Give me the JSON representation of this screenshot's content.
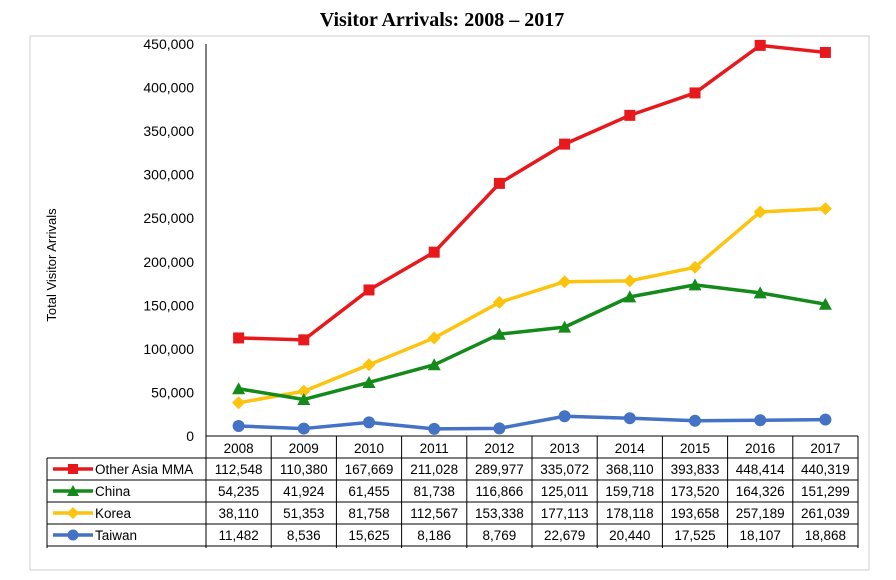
{
  "chart_data": {
    "type": "line",
    "title": "Visitor Arrivals: 2008 – 2017",
    "xlabel": "",
    "ylabel": "Total Visitor Arrivals",
    "ylim": [
      0,
      450000
    ],
    "y_ticks": [
      "0",
      "50,000",
      "100,000",
      "150,000",
      "200,000",
      "250,000",
      "300,000",
      "350,000",
      "400,000",
      "450,000"
    ],
    "categories": [
      "2008",
      "2009",
      "2010",
      "2011",
      "2012",
      "2013",
      "2014",
      "2015",
      "2016",
      "2017"
    ],
    "series": [
      {
        "name": "Other Asia MMA",
        "color": "#e8191c",
        "marker": "square",
        "values": [
          112548,
          110380,
          167669,
          211028,
          289977,
          335072,
          368110,
          393833,
          448414,
          440319
        ],
        "labels": [
          "112,548",
          "110,380",
          "167,669",
          "211,028",
          "289,977",
          "335,072",
          "368,110",
          "393,833",
          "448,414",
          "440,319"
        ]
      },
      {
        "name": "China",
        "color": "#148a1a",
        "marker": "triangle",
        "values": [
          54235,
          41924,
          61455,
          81738,
          116866,
          125011,
          159718,
          173520,
          164326,
          151299
        ],
        "labels": [
          "54,235",
          "41,924",
          "61,455",
          "81,738",
          "116,866",
          "125,011",
          "159,718",
          "173,520",
          "164,326",
          "151,299"
        ]
      },
      {
        "name": "Korea",
        "color": "#fcc30f",
        "marker": "diamond",
        "values": [
          38110,
          51353,
          81758,
          112567,
          153338,
          177113,
          178118,
          193658,
          257189,
          261039
        ],
        "labels": [
          "38,110",
          "51,353",
          "81,758",
          "112,567",
          "153,338",
          "177,113",
          "178,118",
          "193,658",
          "257,189",
          "261,039"
        ]
      },
      {
        "name": "Taiwan",
        "color": "#4472c4",
        "marker": "circle",
        "values": [
          11482,
          8536,
          15625,
          8186,
          8769,
          22679,
          20440,
          17525,
          18107,
          18868
        ],
        "labels": [
          "11,482",
          "8,536",
          "15,625",
          "8,186",
          "8,769",
          "22,679",
          "20,440",
          "17,525",
          "18,107",
          "18,868"
        ]
      }
    ],
    "grid": false,
    "legend": "data-table"
  }
}
